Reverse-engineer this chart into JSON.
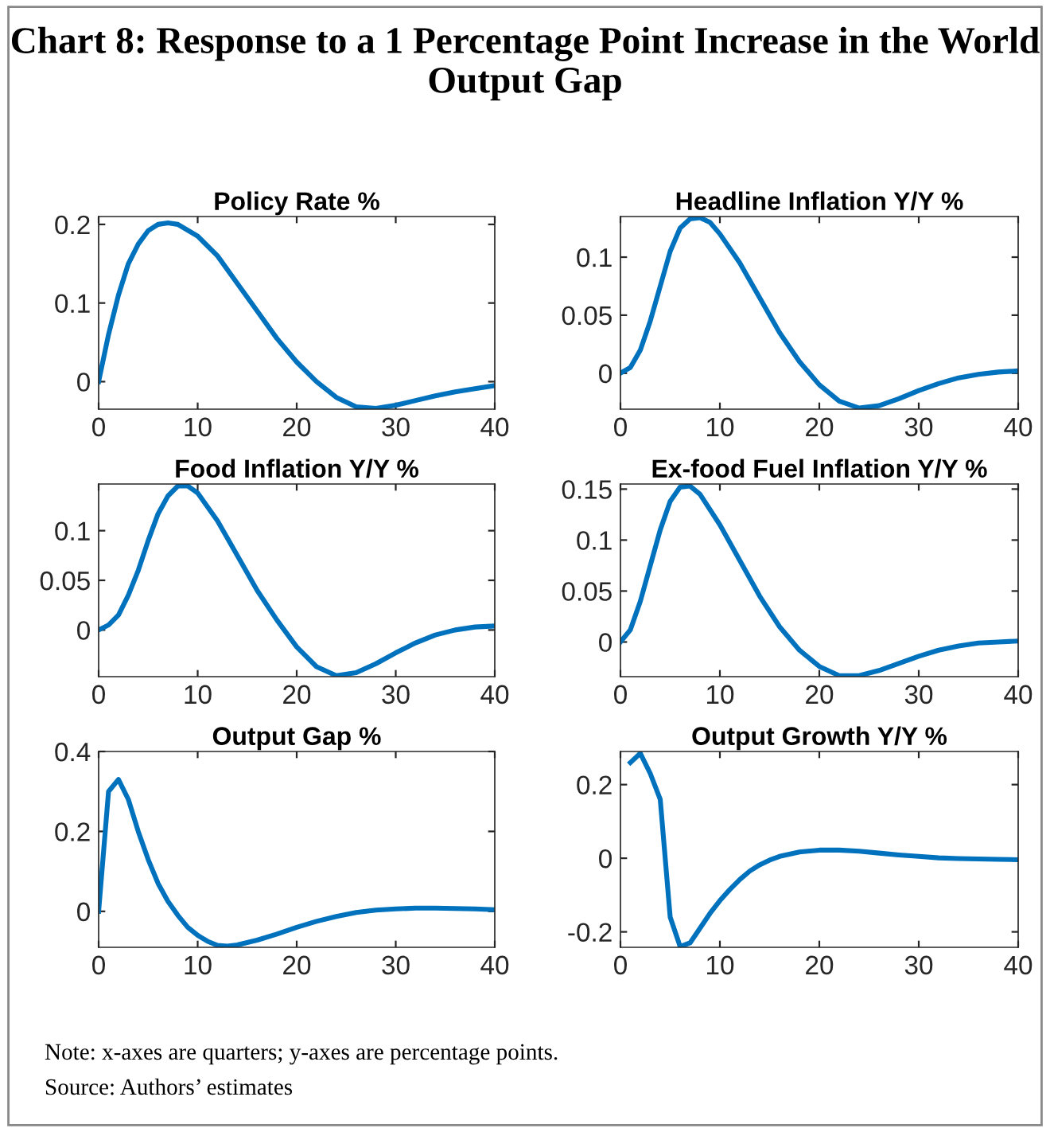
{
  "chart_data": [
    {
      "type": "other",
      "title": "Chart 8: Response to a 1 Percentage Point Increase in the World Output Gap",
      "annotations": [
        "Note: x-axes are quarters; y-axes are percentage points.",
        "Source: Authors’ estimates"
      ]
    },
    {
      "type": "line",
      "title": "Policy Rate %",
      "xlim": [
        0,
        40
      ],
      "xticks": [
        0,
        10,
        20,
        30,
        40
      ],
      "ylim": [
        -0.035,
        0.21
      ],
      "yticks": [
        0,
        0.1,
        0.2
      ],
      "grid": false,
      "legend": false,
      "line_style": "solid",
      "series": [
        {
          "color": "#0072bd",
          "x": [
            0,
            1,
            2,
            3,
            4,
            5,
            6,
            7,
            8,
            10,
            12,
            14,
            16,
            18,
            20,
            22,
            24,
            26,
            28,
            30,
            32,
            34,
            36,
            38,
            40
          ],
          "values": [
            0,
            0.06,
            0.11,
            0.15,
            0.175,
            0.192,
            0.2,
            0.202,
            0.2,
            0.185,
            0.16,
            0.125,
            0.09,
            0.055,
            0.025,
            0.0,
            -0.02,
            -0.032,
            -0.034,
            -0.03,
            -0.024,
            -0.018,
            -0.013,
            -0.009,
            -0.005
          ]
        }
      ]
    },
    {
      "type": "line",
      "title": "Headline Inflation Y/Y %",
      "xlim": [
        0,
        40
      ],
      "xticks": [
        0,
        10,
        20,
        30,
        40
      ],
      "ylim": [
        -0.031,
        0.135
      ],
      "yticks": [
        0,
        0.05,
        0.1
      ],
      "grid": false,
      "legend": false,
      "line_style": "solid",
      "series": [
        {
          "color": "#0072bd",
          "x": [
            0,
            1,
            2,
            3,
            4,
            5,
            6,
            7,
            8,
            9,
            10,
            12,
            14,
            16,
            18,
            20,
            22,
            24,
            26,
            28,
            30,
            32,
            34,
            36,
            38,
            40
          ],
          "values": [
            0,
            0.005,
            0.02,
            0.045,
            0.075,
            0.105,
            0.125,
            0.133,
            0.134,
            0.13,
            0.12,
            0.095,
            0.065,
            0.035,
            0.01,
            -0.01,
            -0.024,
            -0.03,
            -0.028,
            -0.022,
            -0.015,
            -0.009,
            -0.004,
            -0.001,
            0.001,
            0.002
          ]
        }
      ]
    },
    {
      "type": "line",
      "title": "Food Inflation Y/Y %",
      "xlim": [
        0,
        40
      ],
      "xticks": [
        0,
        10,
        20,
        30,
        40
      ],
      "ylim": [
        -0.047,
        0.147
      ],
      "yticks": [
        0,
        0.05,
        0.1
      ],
      "grid": false,
      "legend": false,
      "line_style": "solid",
      "series": [
        {
          "color": "#0072bd",
          "x": [
            0,
            1,
            2,
            3,
            4,
            5,
            6,
            7,
            8,
            9,
            10,
            12,
            14,
            16,
            18,
            20,
            22,
            24,
            26,
            28,
            30,
            32,
            34,
            36,
            38,
            40
          ],
          "values": [
            0,
            0.005,
            0.015,
            0.035,
            0.06,
            0.09,
            0.117,
            0.135,
            0.145,
            0.145,
            0.138,
            0.11,
            0.075,
            0.04,
            0.01,
            -0.017,
            -0.037,
            -0.046,
            -0.043,
            -0.034,
            -0.023,
            -0.013,
            -0.005,
            0.0,
            0.003,
            0.004
          ]
        }
      ]
    },
    {
      "type": "line",
      "title": "Ex-food Fuel Inflation Y/Y %",
      "xlim": [
        0,
        40
      ],
      "xticks": [
        0,
        10,
        20,
        30,
        40
      ],
      "ylim": [
        -0.034,
        0.155
      ],
      "yticks": [
        0,
        0.05,
        0.1,
        0.15
      ],
      "grid": false,
      "legend": false,
      "line_style": "solid",
      "series": [
        {
          "color": "#0072bd",
          "x": [
            0,
            1,
            2,
            3,
            4,
            5,
            6,
            7,
            8,
            10,
            12,
            14,
            16,
            18,
            20,
            22,
            24,
            26,
            28,
            30,
            32,
            34,
            36,
            38,
            40
          ],
          "values": [
            0,
            0.012,
            0.04,
            0.075,
            0.11,
            0.138,
            0.152,
            0.153,
            0.145,
            0.115,
            0.08,
            0.045,
            0.015,
            -0.008,
            -0.024,
            -0.033,
            -0.033,
            -0.028,
            -0.021,
            -0.014,
            -0.008,
            -0.004,
            -0.001,
            0.0,
            0.001
          ]
        }
      ]
    },
    {
      "type": "line",
      "title": "Output Gap %",
      "xlim": [
        0,
        40
      ],
      "xticks": [
        0,
        10,
        20,
        30,
        40
      ],
      "ylim": [
        -0.09,
        0.4
      ],
      "yticks": [
        0,
        0.2,
        0.4
      ],
      "grid": false,
      "legend": false,
      "line_style": "solid",
      "series": [
        {
          "color": "#0072bd",
          "x": [
            0,
            1,
            2,
            3,
            4,
            5,
            6,
            7,
            8,
            9,
            10,
            11,
            12,
            13,
            14,
            16,
            18,
            20,
            22,
            24,
            26,
            28,
            30,
            32,
            34,
            36,
            38,
            40
          ],
          "values": [
            0,
            0.3,
            0.33,
            0.28,
            0.2,
            0.13,
            0.07,
            0.025,
            -0.01,
            -0.04,
            -0.06,
            -0.075,
            -0.085,
            -0.087,
            -0.084,
            -0.072,
            -0.057,
            -0.04,
            -0.025,
            -0.013,
            -0.003,
            0.003,
            0.006,
            0.008,
            0.008,
            0.007,
            0.006,
            0.004
          ]
        }
      ]
    },
    {
      "type": "line",
      "title": "Output Growth Y/Y %",
      "xlim": [
        0,
        40
      ],
      "xticks": [
        0,
        10,
        20,
        30,
        40
      ],
      "ylim": [
        -0.242,
        0.29
      ],
      "yticks": [
        {
          "value": -0.2,
          "label": "-0.2"
        },
        0,
        0.2
      ],
      "grid": false,
      "legend": false,
      "line_style": "solid",
      "series": [
        {
          "color": "#0072bd",
          "x": [
            1,
            2,
            3,
            4,
            5,
            6,
            7,
            8,
            9,
            10,
            11,
            12,
            13,
            14,
            15,
            16,
            18,
            20,
            22,
            24,
            26,
            28,
            30,
            32,
            34,
            36,
            38,
            40
          ],
          "values": [
            0.26,
            0.285,
            0.23,
            0.16,
            -0.16,
            -0.24,
            -0.23,
            -0.19,
            -0.15,
            -0.115,
            -0.085,
            -0.058,
            -0.035,
            -0.018,
            -0.005,
            0.005,
            0.017,
            0.022,
            0.022,
            0.019,
            0.014,
            0.009,
            0.005,
            0.001,
            -0.001,
            -0.002,
            -0.003,
            -0.004
          ]
        }
      ]
    }
  ]
}
